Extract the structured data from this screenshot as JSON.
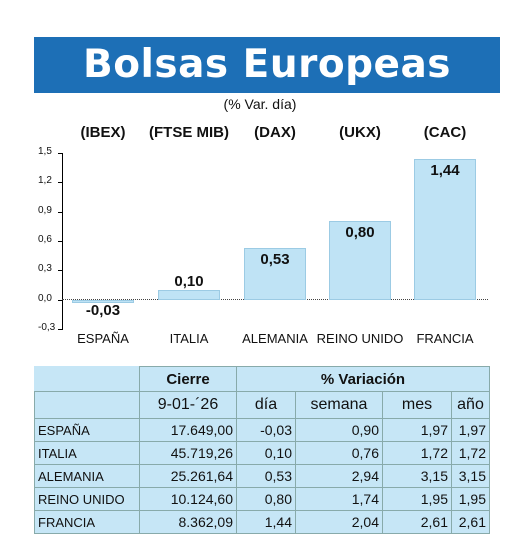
{
  "title": "Bolsas Europeas",
  "subtitle": "(% Var. día)",
  "chart_data": {
    "type": "bar",
    "categories": [
      "ESPAÑA",
      "ITALIA",
      "ALEMANIA",
      "REINO UNIDO",
      "FRANCIA"
    ],
    "index_labels": [
      "(IBEX)",
      "(FTSE MIB)",
      "(DAX)",
      "(UKX)",
      "(CAC)"
    ],
    "values": [
      -0.03,
      0.1,
      0.53,
      0.8,
      1.44
    ],
    "value_labels": [
      "-0,03",
      "0,10",
      "0,53",
      "0,80",
      "1,44"
    ],
    "ylim": [
      -0.3,
      1.5
    ],
    "yticks": [
      -0.3,
      0.0,
      0.3,
      0.6,
      0.9,
      1.2,
      1.5
    ],
    "ytick_labels": [
      "-0,3",
      "0,0",
      "0,3",
      "0,6",
      "0,9",
      "1,2",
      "1,5"
    ],
    "bar_color": "#bfe3f5"
  },
  "table": {
    "header_cierre": "Cierre",
    "header_variacion": "% Variación",
    "date": "9-01-´26",
    "col_dia": "día",
    "col_semana": "semana",
    "col_mes": "mes",
    "col_ano": "año",
    "rows": [
      {
        "name": "ESPAÑA",
        "cierre": "17.649,00",
        "dia": "-0,03",
        "semana": "0,90",
        "mes": "1,97",
        "ano": "1,97"
      },
      {
        "name": "ITALIA",
        "cierre": "45.719,26",
        "dia": "0,10",
        "semana": "0,76",
        "mes": "1,72",
        "ano": "1,72"
      },
      {
        "name": "ALEMANIA",
        "cierre": "25.261,64",
        "dia": "0,53",
        "semana": "2,94",
        "mes": "3,15",
        "ano": "3,15"
      },
      {
        "name": "REINO UNIDO",
        "cierre": "10.124,60",
        "dia": "0,80",
        "semana": "1,74",
        "mes": "1,95",
        "ano": "1,95"
      },
      {
        "name": "FRANCIA",
        "cierre": "8.362,09",
        "dia": "1,44",
        "semana": "2,04",
        "mes": "2,61",
        "ano": "2,61"
      }
    ]
  }
}
